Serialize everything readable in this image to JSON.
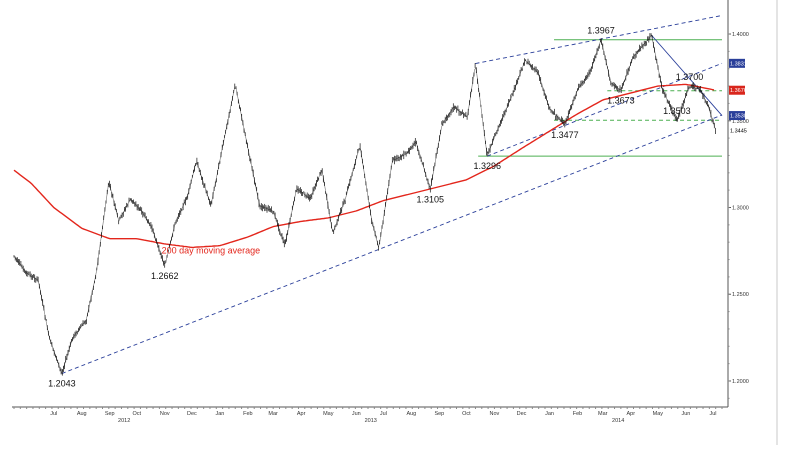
{
  "chart_data": {
    "type": "candlestick",
    "title": "",
    "xlabel": "",
    "ylabel": "",
    "ylim": [
      1.185,
      1.415
    ],
    "grid": false,
    "month_labels": [
      {
        "label": "Jul",
        "date": "2012-07-15"
      },
      {
        "label": "Aug",
        "date": "2012-08-15"
      },
      {
        "label": "Sep",
        "date": "2012-09-15"
      },
      {
        "label": "Oct",
        "date": "2012-10-15"
      },
      {
        "label": "Nov",
        "date": "2012-11-15"
      },
      {
        "label": "Dec",
        "date": "2012-12-15"
      },
      {
        "label": "Jan",
        "date": "2013-01-15"
      },
      {
        "label": "Feb",
        "date": "2013-02-15"
      },
      {
        "label": "Mar",
        "date": "2013-03-15"
      },
      {
        "label": "Apr",
        "date": "2013-04-15"
      },
      {
        "label": "May",
        "date": "2013-05-15"
      },
      {
        "label": "Jun",
        "date": "2013-06-15"
      },
      {
        "label": "Jul",
        "date": "2013-07-15"
      },
      {
        "label": "Aug",
        "date": "2013-08-15"
      },
      {
        "label": "Sep",
        "date": "2013-09-15"
      },
      {
        "label": "Oct",
        "date": "2013-10-15"
      },
      {
        "label": "Nov",
        "date": "2013-11-15"
      },
      {
        "label": "Dec",
        "date": "2013-12-15"
      },
      {
        "label": "Jan",
        "date": "2014-01-15"
      },
      {
        "label": "Feb",
        "date": "2014-02-15"
      },
      {
        "label": "Mar",
        "date": "2014-03-15"
      },
      {
        "label": "Apr",
        "date": "2014-04-15"
      },
      {
        "label": "May",
        "date": "2014-05-15"
      },
      {
        "label": "Jun",
        "date": "2014-06-15"
      },
      {
        "label": "Jul",
        "date": "2014-07-15"
      }
    ],
    "year_labels": [
      {
        "label": "2012",
        "date": "2012-10-01"
      },
      {
        "label": "2013",
        "date": "2013-07-01"
      },
      {
        "label": "2014",
        "date": "2014-04-01"
      }
    ],
    "y_ticks": [
      {
        "value": 1.2,
        "label": "1.2000"
      },
      {
        "value": 1.25,
        "label": "1.2500"
      },
      {
        "value": 1.3,
        "label": "1.3000"
      },
      {
        "value": 1.35,
        "label": "1.3500"
      },
      {
        "value": 1.4,
        "label": "1.4000"
      }
    ],
    "price_path": [
      [
        "2012-06-01",
        1.272
      ],
      [
        "2012-06-15",
        1.262
      ],
      [
        "2012-06-28",
        1.258
      ],
      [
        "2012-07-10",
        1.225
      ],
      [
        "2012-07-24",
        1.2043
      ],
      [
        "2012-08-05",
        1.225
      ],
      [
        "2012-08-20",
        1.235
      ],
      [
        "2012-08-31",
        1.262
      ],
      [
        "2012-09-14",
        1.315
      ],
      [
        "2012-09-25",
        1.292
      ],
      [
        "2012-10-08",
        1.305
      ],
      [
        "2012-10-20",
        1.298
      ],
      [
        "2012-11-01",
        1.288
      ],
      [
        "2012-11-15",
        1.2662
      ],
      [
        "2012-11-27",
        1.292
      ],
      [
        "2012-12-10",
        1.306
      ],
      [
        "2012-12-20",
        1.327
      ],
      [
        "2013-01-05",
        1.301
      ],
      [
        "2013-01-18",
        1.335
      ],
      [
        "2013-02-01",
        1.371
      ],
      [
        "2013-02-12",
        1.342
      ],
      [
        "2013-02-28",
        1.301
      ],
      [
        "2013-03-15",
        1.298
      ],
      [
        "2013-03-28",
        1.278
      ],
      [
        "2013-04-10",
        1.311
      ],
      [
        "2013-04-25",
        1.305
      ],
      [
        "2013-05-08",
        1.322
      ],
      [
        "2013-05-20",
        1.285
      ],
      [
        "2013-06-03",
        1.305
      ],
      [
        "2013-06-19",
        1.336
      ],
      [
        "2013-07-02",
        1.293
      ],
      [
        "2013-07-10",
        1.2765
      ],
      [
        "2013-07-25",
        1.327
      ],
      [
        "2013-08-10",
        1.331
      ],
      [
        "2013-08-20",
        1.338
      ],
      [
        "2013-09-05",
        1.3105
      ],
      [
        "2013-09-18",
        1.348
      ],
      [
        "2013-10-01",
        1.358
      ],
      [
        "2013-10-16",
        1.352
      ],
      [
        "2013-10-25",
        1.383
      ],
      [
        "2013-11-07",
        1.3296
      ],
      [
        "2013-11-20",
        1.347
      ],
      [
        "2013-12-05",
        1.365
      ],
      [
        "2013-12-19",
        1.385
      ],
      [
        "2014-01-02",
        1.378
      ],
      [
        "2014-01-15",
        1.357
      ],
      [
        "2014-02-01",
        1.3477
      ],
      [
        "2014-02-15",
        1.368
      ],
      [
        "2014-03-01",
        1.378
      ],
      [
        "2014-03-13",
        1.3967
      ],
      [
        "2014-03-24",
        1.372
      ],
      [
        "2014-04-04",
        1.3673
      ],
      [
        "2014-04-18",
        1.387
      ],
      [
        "2014-05-08",
        1.3993
      ],
      [
        "2014-05-20",
        1.368
      ],
      [
        "2014-06-05",
        1.3503
      ],
      [
        "2014-06-19",
        1.37
      ],
      [
        "2014-07-01",
        1.368
      ],
      [
        "2014-07-10",
        1.358
      ],
      [
        "2014-07-18",
        1.3445
      ]
    ],
    "moving_average_path": [
      [
        "2012-06-01",
        1.3215
      ],
      [
        "2012-06-20",
        1.314
      ],
      [
        "2012-07-15",
        1.3
      ],
      [
        "2012-08-15",
        1.288
      ],
      [
        "2012-09-15",
        1.282
      ],
      [
        "2012-10-15",
        1.282
      ],
      [
        "2012-11-15",
        1.279
      ],
      [
        "2012-12-15",
        1.277
      ],
      [
        "2013-01-15",
        1.278
      ],
      [
        "2013-02-15",
        1.283
      ],
      [
        "2013-03-15",
        1.289
      ],
      [
        "2013-04-15",
        1.292
      ],
      [
        "2013-05-15",
        1.294
      ],
      [
        "2013-06-15",
        1.298
      ],
      [
        "2013-07-15",
        1.304
      ],
      [
        "2013-08-15",
        1.308
      ],
      [
        "2013-09-15",
        1.312
      ],
      [
        "2013-10-15",
        1.316
      ],
      [
        "2013-11-15",
        1.324
      ],
      [
        "2013-12-15",
        1.334
      ],
      [
        "2014-01-15",
        1.344
      ],
      [
        "2014-02-15",
        1.354
      ],
      [
        "2014-03-15",
        1.362
      ],
      [
        "2014-04-15",
        1.366
      ],
      [
        "2014-05-15",
        1.37
      ],
      [
        "2014-06-15",
        1.371
      ],
      [
        "2014-07-18",
        1.3676
      ]
    ],
    "annotations": [
      {
        "label": "1.2043",
        "date": "2012-07-24",
        "value": 1.2043,
        "position": "below"
      },
      {
        "label": "1.2662",
        "date": "2012-11-15",
        "value": 1.2662,
        "position": "below"
      },
      {
        "label": "1.3105",
        "date": "2013-09-05",
        "value": 1.3105,
        "position": "below"
      },
      {
        "label": "1.3296",
        "date": "2013-11-07",
        "value": 1.3296,
        "position": "below"
      },
      {
        "label": "1.3477",
        "date": "2014-02-01",
        "value": 1.3477,
        "position": "below"
      },
      {
        "label": "1.3673",
        "date": "2014-04-04",
        "value": 1.3673,
        "position": "below"
      },
      {
        "label": "1.3503",
        "date": "2014-06-05",
        "value": 1.3503,
        "position": "above"
      },
      {
        "label": "1.3700",
        "date": "2014-06-19",
        "value": 1.37,
        "position": "above"
      },
      {
        "label": "1.3967",
        "date": "2014-03-13",
        "value": 1.3967,
        "position": "above"
      }
    ],
    "ma_label": {
      "text": "200 day moving average",
      "date": "2013-01-05",
      "value": 1.2735
    },
    "trend_lines": [
      {
        "name": "long-term-uptrend-support",
        "points": [
          [
            "2012-07-24",
            1.2043
          ],
          [
            "2014-07-25",
            1.3533
          ]
        ],
        "color": "#2a3f9a",
        "style": "dashed"
      },
      {
        "name": "channel-top",
        "points": [
          [
            "2013-10-25",
            1.383
          ],
          [
            "2014-07-25",
            1.4107
          ]
        ],
        "color": "#2a3f9a",
        "style": "dashed"
      },
      {
        "name": "channel-bottom",
        "points": [
          [
            "2013-11-07",
            1.3296
          ],
          [
            "2014-07-25",
            1.3831
          ]
        ],
        "color": "#2a3f9a",
        "style": "dashed"
      },
      {
        "name": "downtrend-line",
        "points": [
          [
            "2014-05-08",
            1.3993
          ],
          [
            "2014-07-25",
            1.353
          ]
        ],
        "color": "#2a3f9a",
        "style": "solid"
      }
    ],
    "horizontal_levels": [
      {
        "value": 1.3967,
        "from": "2014-01-20",
        "to": "2014-07-25",
        "color": "#4caf50",
        "style": "solid"
      },
      {
        "value": 1.3296,
        "from": "2013-10-28",
        "to": "2014-07-25",
        "color": "#4caf50",
        "style": "solid"
      },
      {
        "value": 1.3503,
        "from": "2014-01-20",
        "to": "2014-07-25",
        "color": "#4caf50",
        "style": "dashed"
      },
      {
        "value": 1.3673,
        "from": "2014-03-20",
        "to": "2014-07-25",
        "color": "#4caf50",
        "style": "dashed"
      }
    ],
    "right_labels": [
      {
        "text": "1.3831",
        "value": 1.3831,
        "bg": "#2a3f9a",
        "fg": "#ffffff"
      },
      {
        "text": "1.3676",
        "value": 1.3676,
        "bg": "#d9261c",
        "fg": "#ffffff"
      },
      {
        "text": "1.3530",
        "value": 1.353,
        "bg": "#2a3f9a",
        "fg": "#ffffff"
      },
      {
        "text": "1.3445",
        "value": 1.3445,
        "bg": "#ffffff",
        "fg": "#000000"
      }
    ],
    "colors": {
      "price": "#111111",
      "moving_average": "#e3261c",
      "trend": "#2a3f9a",
      "levels": "#4caf50",
      "ma_label": "#e3261c"
    }
  }
}
